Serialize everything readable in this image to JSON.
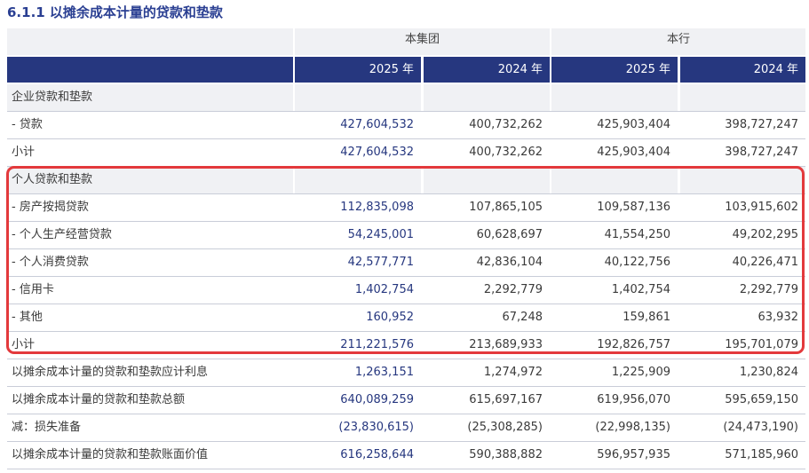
{
  "title": "6.1.1 以摊余成本计量的贷款和垫款",
  "groups": [
    "本集团",
    "本行"
  ],
  "years": [
    "2025 年",
    "2024 年",
    "2025 年",
    "2024 年"
  ],
  "rows": [
    {
      "label": "企业贷款和垫款",
      "values": [
        "",
        "",
        "",
        ""
      ]
    },
    {
      "label": "- 贷款",
      "values": [
        "427,604,532",
        "400,732,262",
        "425,903,404",
        "398,727,247"
      ]
    },
    {
      "label": "小计",
      "values": [
        "427,604,532",
        "400,732,262",
        "425,903,404",
        "398,727,247"
      ]
    },
    {
      "label": "个人贷款和垫款",
      "values": [
        "",
        "",
        "",
        ""
      ]
    },
    {
      "label": "- 房产按揭贷款",
      "values": [
        "112,835,098",
        "107,865,105",
        "109,587,136",
        "103,915,602"
      ]
    },
    {
      "label": "- 个人生产经营贷款",
      "values": [
        "54,245,001",
        "60,628,697",
        "41,554,250",
        "49,202,295"
      ]
    },
    {
      "label": "- 个人消费贷款",
      "values": [
        "42,577,771",
        "42,836,104",
        "40,122,756",
        "40,226,471"
      ]
    },
    {
      "label": "- 信用卡",
      "values": [
        "1,402,754",
        "2,292,779",
        "1,402,754",
        "2,292,779"
      ]
    },
    {
      "label": "- 其他",
      "values": [
        "160,952",
        "67,248",
        "159,861",
        "63,932"
      ]
    },
    {
      "label": "小计",
      "values": [
        "211,221,576",
        "213,689,933",
        "192,826,757",
        "195,701,079"
      ]
    },
    {
      "label": "以摊余成本计量的贷款和垫款应计利息",
      "values": [
        "1,263,151",
        "1,274,972",
        "1,225,909",
        "1,230,824"
      ]
    },
    {
      "label": "以摊余成本计量的贷款和垫款总额",
      "values": [
        "640,089,259",
        "615,697,167",
        "619,956,070",
        "595,659,150"
      ]
    },
    {
      "label": "减：损失准备",
      "values": [
        "(23,830,615)",
        "(25,308,285)",
        "(22,998,135)",
        "(24,473,190)"
      ]
    },
    {
      "label": "以摊余成本计量的贷款和垫款账面价值",
      "values": [
        "616,258,644",
        "590,388,882",
        "596,957,935",
        "571,185,960"
      ]
    }
  ],
  "colors": {
    "title": "#2a3f92",
    "header_bg": "#26377f",
    "accent_values": "#26377f",
    "highlight_border": "#e3393c",
    "light_bg": "#f0f1f4"
  }
}
